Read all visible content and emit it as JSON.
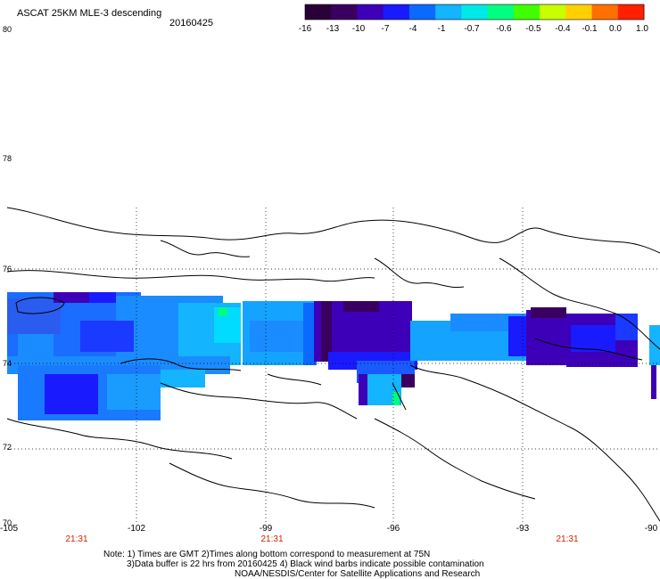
{
  "title": "ASCAT 25KM MLE-3 descending",
  "date": "20160425",
  "colorbar": {
    "labels": [
      "-16",
      "-13",
      "-10",
      "-7",
      "-4",
      "-1",
      "-0.7",
      "-0.6",
      "-0.5",
      "-0.4",
      "-0.1",
      "0.0",
      "1.0"
    ],
    "colors": [
      "#2a0038",
      "#3a0060",
      "#3d00b8",
      "#1a1aff",
      "#0a6aff",
      "#14b4ff",
      "#00e8e8",
      "#00ff80",
      "#40ff00",
      "#c8ff00",
      "#ffd000",
      "#ff7000",
      "#ff2000"
    ]
  },
  "lat_labels": [
    "80",
    "78",
    "76",
    "74",
    "72",
    "70"
  ],
  "lon_labels": [
    "-105",
    "-102",
    "-99",
    "-96",
    "-93",
    "-90"
  ],
  "time_labels": [
    "21:31",
    "21:31",
    "21:31"
  ],
  "notes": [
    "Note: 1) Times are GMT 2)Times along bottom correspond to measurement at 75N",
    "3)Data buffer is 22 hrs from 20160425 4) Black wind barbs indicate possible contamination",
    "NOAA/NESDIS/Center for Satellite Applications and Research"
  ]
}
